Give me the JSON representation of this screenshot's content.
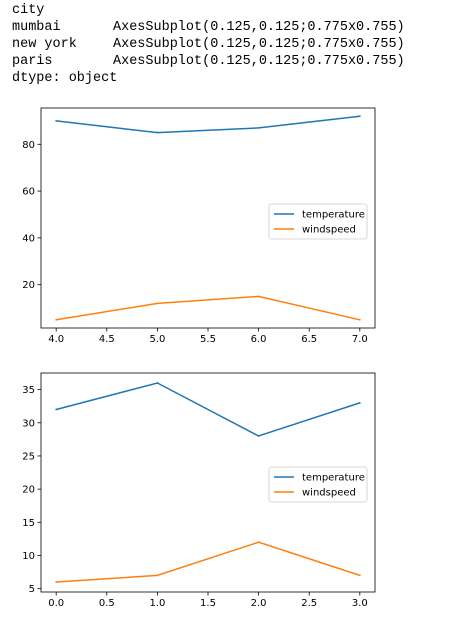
{
  "output": {
    "index_name": "city",
    "rows": [
      {
        "city": "mumbai",
        "value": "AxesSubplot(0.125,0.125;0.775x0.755)"
      },
      {
        "city": "new york",
        "value": "AxesSubplot(0.125,0.125;0.775x0.755)"
      },
      {
        "city": "paris",
        "value": "AxesSubplot(0.125,0.125;0.775x0.755)"
      }
    ],
    "dtype": "dtype: object"
  },
  "colors": {
    "temperature": "#1f77b4",
    "windspeed": "#ff7f0e",
    "axis": "#000000"
  },
  "chart_data": [
    {
      "type": "line",
      "x": [
        4,
        5,
        6,
        7
      ],
      "series": [
        {
          "name": "temperature",
          "values": [
            90,
            85,
            87,
            92
          ]
        },
        {
          "name": "windspeed",
          "values": [
            5,
            12,
            15,
            5
          ]
        }
      ],
      "xlim": [
        3.85,
        7.15
      ],
      "ylim": [
        1.5,
        95.5
      ],
      "xticks": [
        4.0,
        4.5,
        5.0,
        5.5,
        6.0,
        6.5,
        7.0
      ],
      "xtick_labels": [
        "4.0",
        "4.5",
        "5.0",
        "5.5",
        "6.0",
        "6.5",
        "7.0"
      ],
      "yticks": [
        20,
        40,
        60,
        80
      ],
      "ytick_labels": [
        "20",
        "40",
        "60",
        "80"
      ],
      "legend": "center-right",
      "grid": false
    },
    {
      "type": "line",
      "x": [
        0,
        1,
        2,
        3
      ],
      "series": [
        {
          "name": "temperature",
          "values": [
            32,
            36,
            28,
            33
          ]
        },
        {
          "name": "windspeed",
          "values": [
            6,
            7,
            12,
            7
          ]
        }
      ],
      "xlim": [
        -0.15,
        3.15
      ],
      "ylim": [
        4.5,
        37.5
      ],
      "xticks": [
        0.0,
        0.5,
        1.0,
        1.5,
        2.0,
        2.5,
        3.0
      ],
      "xtick_labels": [
        "0.0",
        "0.5",
        "1.0",
        "1.5",
        "2.0",
        "2.5",
        "3.0"
      ],
      "yticks": [
        5,
        10,
        15,
        20,
        25,
        30,
        35
      ],
      "ytick_labels": [
        "5",
        "10",
        "15",
        "20",
        "25",
        "30",
        "35"
      ],
      "legend": "center-right",
      "grid": false
    }
  ]
}
